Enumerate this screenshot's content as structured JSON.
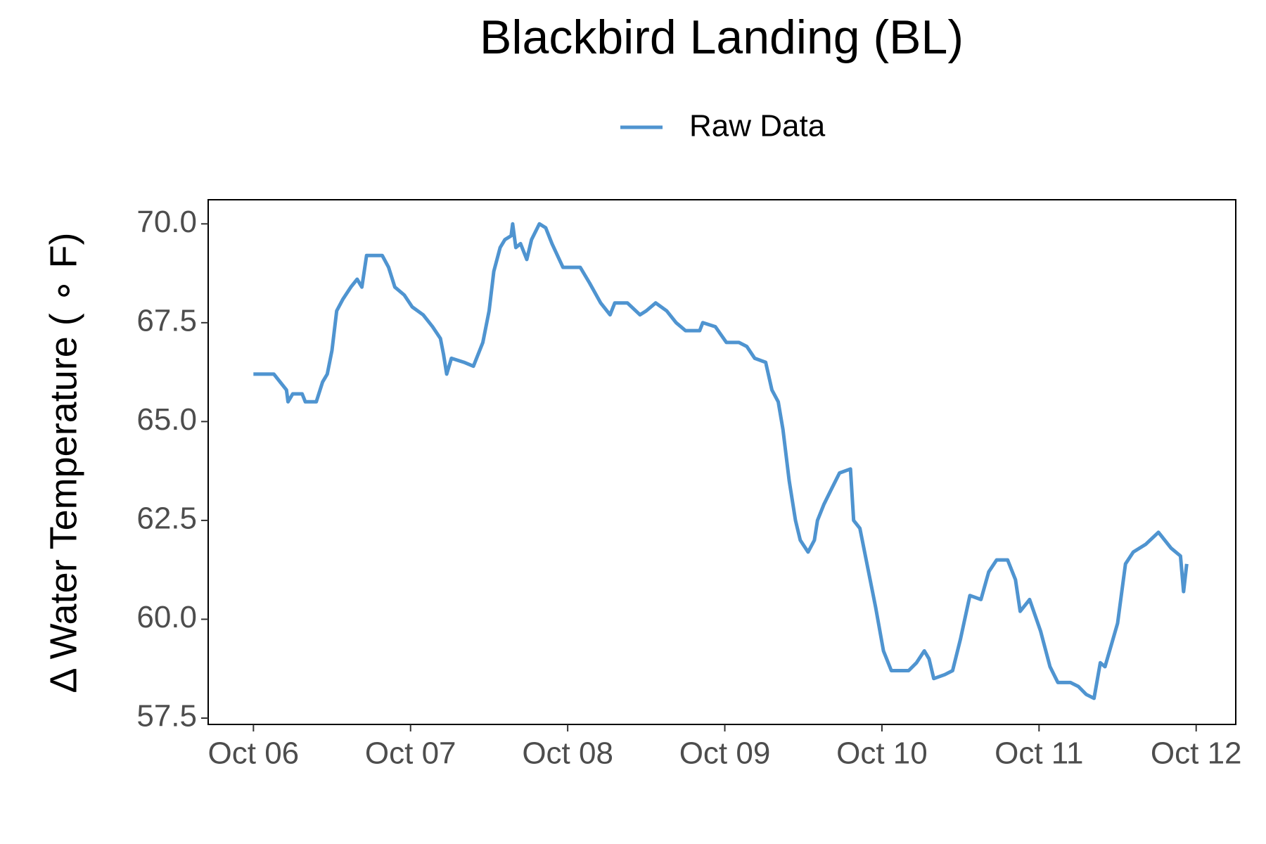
{
  "chart_data": {
    "type": "line",
    "title": "Blackbird Landing (BL)",
    "y_label": "Δ Water Temperature ( ∘ F)",
    "xlim": [
      -0.288,
      6.252
    ],
    "ylim": [
      57.34,
      70.61
    ],
    "xticks": [
      {
        "value": 0,
        "label": "Oct 06"
      },
      {
        "value": 1,
        "label": "Oct 07"
      },
      {
        "value": 2,
        "label": "Oct 08"
      },
      {
        "value": 3,
        "label": "Oct 09"
      },
      {
        "value": 4,
        "label": "Oct 10"
      },
      {
        "value": 5,
        "label": "Oct 11"
      },
      {
        "value": 6,
        "label": "Oct 12"
      }
    ],
    "yticks": [
      57.5,
      {
        "value": 60,
        "label": "60.0"
      },
      62.5,
      {
        "value": 65,
        "label": "65.0"
      },
      67.5,
      {
        "value": 70,
        "label": "70.0"
      }
    ],
    "grid": false,
    "legend": "top",
    "x": [
      0,
      0.13,
      0.21,
      0.22,
      0.25,
      0.31,
      0.33,
      0.4,
      0.44,
      0.47,
      0.5,
      0.53,
      0.57,
      0.62,
      0.66,
      0.69,
      0.72,
      0.82,
      0.86,
      0.9,
      0.96,
      1.01,
      1.08,
      1.14,
      1.19,
      1.21,
      1.23,
      1.26,
      1.34,
      1.4,
      1.46,
      1.5,
      1.53,
      1.57,
      1.6,
      1.64,
      1.65,
      1.67,
      1.7,
      1.74,
      1.77,
      1.82,
      1.86,
      1.9,
      1.97,
      2.08,
      2.14,
      2.21,
      2.27,
      2.3,
      2.38,
      2.46,
      2.5,
      2.56,
      2.63,
      2.69,
      2.75,
      2.84,
      2.86,
      2.94,
      3.01,
      3.09,
      3.14,
      3.19,
      3.26,
      3.3,
      3.34,
      3.37,
      3.41,
      3.45,
      3.48,
      3.53,
      3.57,
      3.59,
      3.63,
      3.68,
      3.73,
      3.8,
      3.82,
      3.86,
      3.91,
      3.96,
      4.01,
      4.06,
      4.17,
      4.22,
      4.27,
      4.3,
      4.33,
      4.4,
      4.45,
      4.5,
      4.56,
      4.63,
      4.68,
      4.73,
      4.8,
      4.85,
      4.88,
      4.94,
      5.01,
      5.07,
      5.12,
      5.2,
      5.25,
      5.3,
      5.35,
      5.39,
      5.42,
      5.5,
      5.55,
      5.6,
      5.68,
      5.76,
      5.84,
      5.9,
      5.92,
      5.94
    ],
    "series": [
      {
        "name": "Raw Data",
        "color": "#4f94d0",
        "values": [
          66.2,
          66.2,
          65.8,
          65.5,
          65.7,
          65.7,
          65.5,
          65.5,
          66.0,
          66.2,
          66.8,
          67.8,
          68.1,
          68.4,
          68.6,
          68.4,
          69.2,
          69.2,
          68.9,
          68.4,
          68.2,
          67.9,
          67.7,
          67.4,
          67.1,
          66.7,
          66.2,
          66.6,
          66.5,
          66.4,
          67.0,
          67.8,
          68.8,
          69.4,
          69.6,
          69.7,
          70.0,
          69.4,
          69.5,
          69.1,
          69.6,
          70.0,
          69.9,
          69.5,
          68.9,
          68.9,
          68.5,
          68.0,
          67.7,
          68.0,
          68.0,
          67.7,
          67.8,
          68.0,
          67.8,
          67.5,
          67.3,
          67.3,
          67.5,
          67.4,
          67.0,
          67.0,
          66.9,
          66.6,
          66.5,
          65.8,
          65.5,
          64.8,
          63.5,
          62.5,
          62.0,
          61.7,
          62.0,
          62.5,
          62.9,
          63.3,
          63.7,
          63.8,
          62.5,
          62.3,
          61.3,
          60.3,
          59.2,
          58.7,
          58.7,
          58.9,
          59.2,
          59.0,
          58.5,
          58.6,
          58.7,
          59.5,
          60.6,
          60.5,
          61.2,
          61.5,
          61.5,
          61.0,
          60.2,
          60.5,
          59.7,
          58.8,
          58.4,
          58.4,
          58.3,
          58.1,
          58.0,
          58.9,
          58.8,
          59.9,
          61.4,
          61.7,
          61.9,
          62.2,
          61.8,
          61.6,
          60.7,
          61.4
        ]
      }
    ]
  }
}
